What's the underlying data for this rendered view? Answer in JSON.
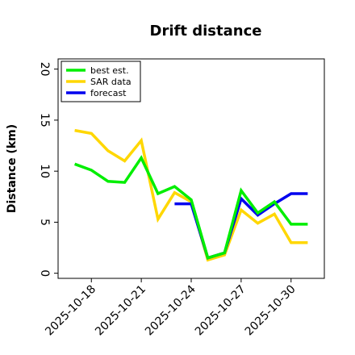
{
  "chart_data": {
    "type": "line",
    "title": "Drift distance",
    "xlabel": "",
    "ylabel": "Distance (km)",
    "ylim": [
      -0.5,
      21
    ],
    "xlim": [
      "2025-10-16",
      "2025-11-01"
    ],
    "x_tick_labels": [
      "2025-10-18",
      "2025-10-21",
      "2025-10-24",
      "2025-10-27",
      "2025-10-30"
    ],
    "y_ticks": [
      0,
      5,
      10,
      15,
      20
    ],
    "y_tick_labels": [
      "0",
      "5",
      "10",
      "15",
      "20"
    ],
    "rotated_tick_labels": true,
    "legend_position": "top-left",
    "grid": false,
    "series": [
      {
        "name": "best est.",
        "color": "#00ee00",
        "x": [
          "2025-10-17",
          "2025-10-18",
          "2025-10-19",
          "2025-10-20",
          "2025-10-21",
          "2025-10-22",
          "2025-10-23",
          "2025-10-24",
          "2025-10-25",
          "2025-10-26",
          "2025-10-27",
          "2025-10-28",
          "2025-10-29",
          "2025-10-30",
          "2025-10-31"
        ],
        "y": [
          10.7,
          10.1,
          9.0,
          8.9,
          11.3,
          7.8,
          8.5,
          7.2,
          1.5,
          2.0,
          8.1,
          5.9,
          7.0,
          4.8,
          4.8
        ]
      },
      {
        "name": "SAR data",
        "color": "#ffd700",
        "x": [
          "2025-10-17",
          "2025-10-18",
          "2025-10-19",
          "2025-10-20",
          "2025-10-21",
          "2025-10-22",
          "2025-10-23",
          "2025-10-24",
          "2025-10-25",
          "2025-10-26",
          "2025-10-27",
          "2025-10-28",
          "2025-10-29",
          "2025-10-30",
          "2025-10-31"
        ],
        "y": [
          14.0,
          13.7,
          12.0,
          11.0,
          13.0,
          5.3,
          7.9,
          7.0,
          1.3,
          1.8,
          6.2,
          4.9,
          5.8,
          3.0,
          3.0
        ]
      },
      {
        "name": "forecast",
        "color": "#0000ee",
        "segments": [
          {
            "x": [
              "2025-10-23",
              "2025-10-24"
            ],
            "y": [
              6.8,
              6.8
            ]
          },
          {
            "x": [
              "2025-10-24",
              "2025-10-25",
              "2025-10-26",
              "2025-10-27",
              "2025-10-28",
              "2025-10-29",
              "2025-10-30",
              "2025-10-31"
            ],
            "y": [
              6.8,
              1.5,
              2.0,
              7.3,
              5.7,
              6.8,
              7.8,
              7.8
            ]
          }
        ]
      }
    ]
  }
}
